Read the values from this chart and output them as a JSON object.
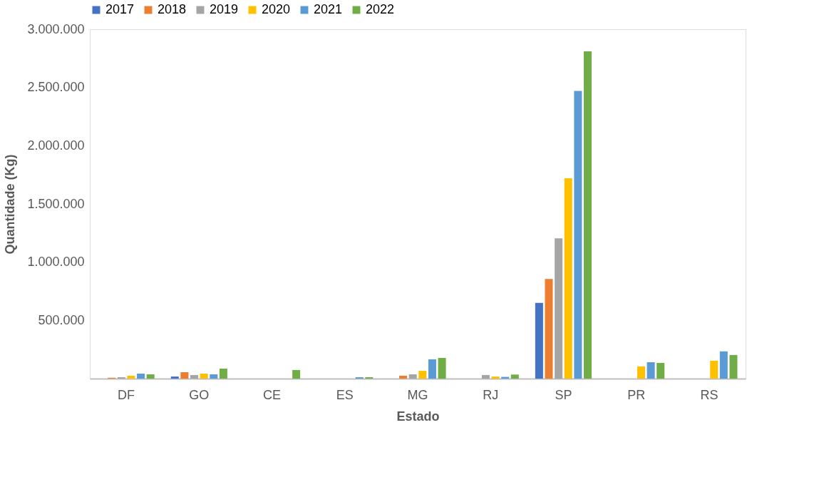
{
  "chart_data": {
    "type": "bar",
    "xlabel": "Estado",
    "ylabel": "Quantidade (Kg)",
    "categories": [
      "DF",
      "GO",
      "CE",
      "ES",
      "MG",
      "RJ",
      "SP",
      "PR",
      "RS"
    ],
    "series": [
      {
        "name": "2017",
        "color": "#4472c4",
        "values": [
          null,
          18000,
          null,
          null,
          null,
          null,
          650000,
          null,
          null
        ]
      },
      {
        "name": "2018",
        "color": "#ed7d31",
        "values": [
          8000,
          55000,
          null,
          null,
          25000,
          null,
          855000,
          null,
          null
        ]
      },
      {
        "name": "2019",
        "color": "#a5a5a5",
        "values": [
          12000,
          31000,
          null,
          null,
          37000,
          31000,
          1205000,
          null,
          null
        ]
      },
      {
        "name": "2020",
        "color": "#ffc000",
        "values": [
          25000,
          43000,
          null,
          null,
          67000,
          18000,
          1720000,
          105000,
          154000
        ]
      },
      {
        "name": "2021",
        "color": "#5b9bd5",
        "values": [
          43000,
          37000,
          null,
          12000,
          166000,
          15000,
          2470000,
          141000,
          234000
        ]
      },
      {
        "name": "2022",
        "color": "#70ad47",
        "values": [
          37000,
          86000,
          74000,
          12000,
          178000,
          35000,
          2810000,
          135000,
          203000
        ]
      }
    ],
    "ylim": [
      0,
      3000000
    ],
    "yticks": [
      {
        "value": 0,
        "label": null
      },
      {
        "value": 500000,
        "label": "500.000"
      },
      {
        "value": 1000000,
        "label": "1.000.000"
      },
      {
        "value": 1500000,
        "label": "1.500.000"
      },
      {
        "value": 2000000,
        "label": "2.000.000"
      },
      {
        "value": 2500000,
        "label": "2.500.000"
      },
      {
        "value": 3000000,
        "label": "3.000.000"
      }
    ],
    "grid": false,
    "legend": "top"
  }
}
